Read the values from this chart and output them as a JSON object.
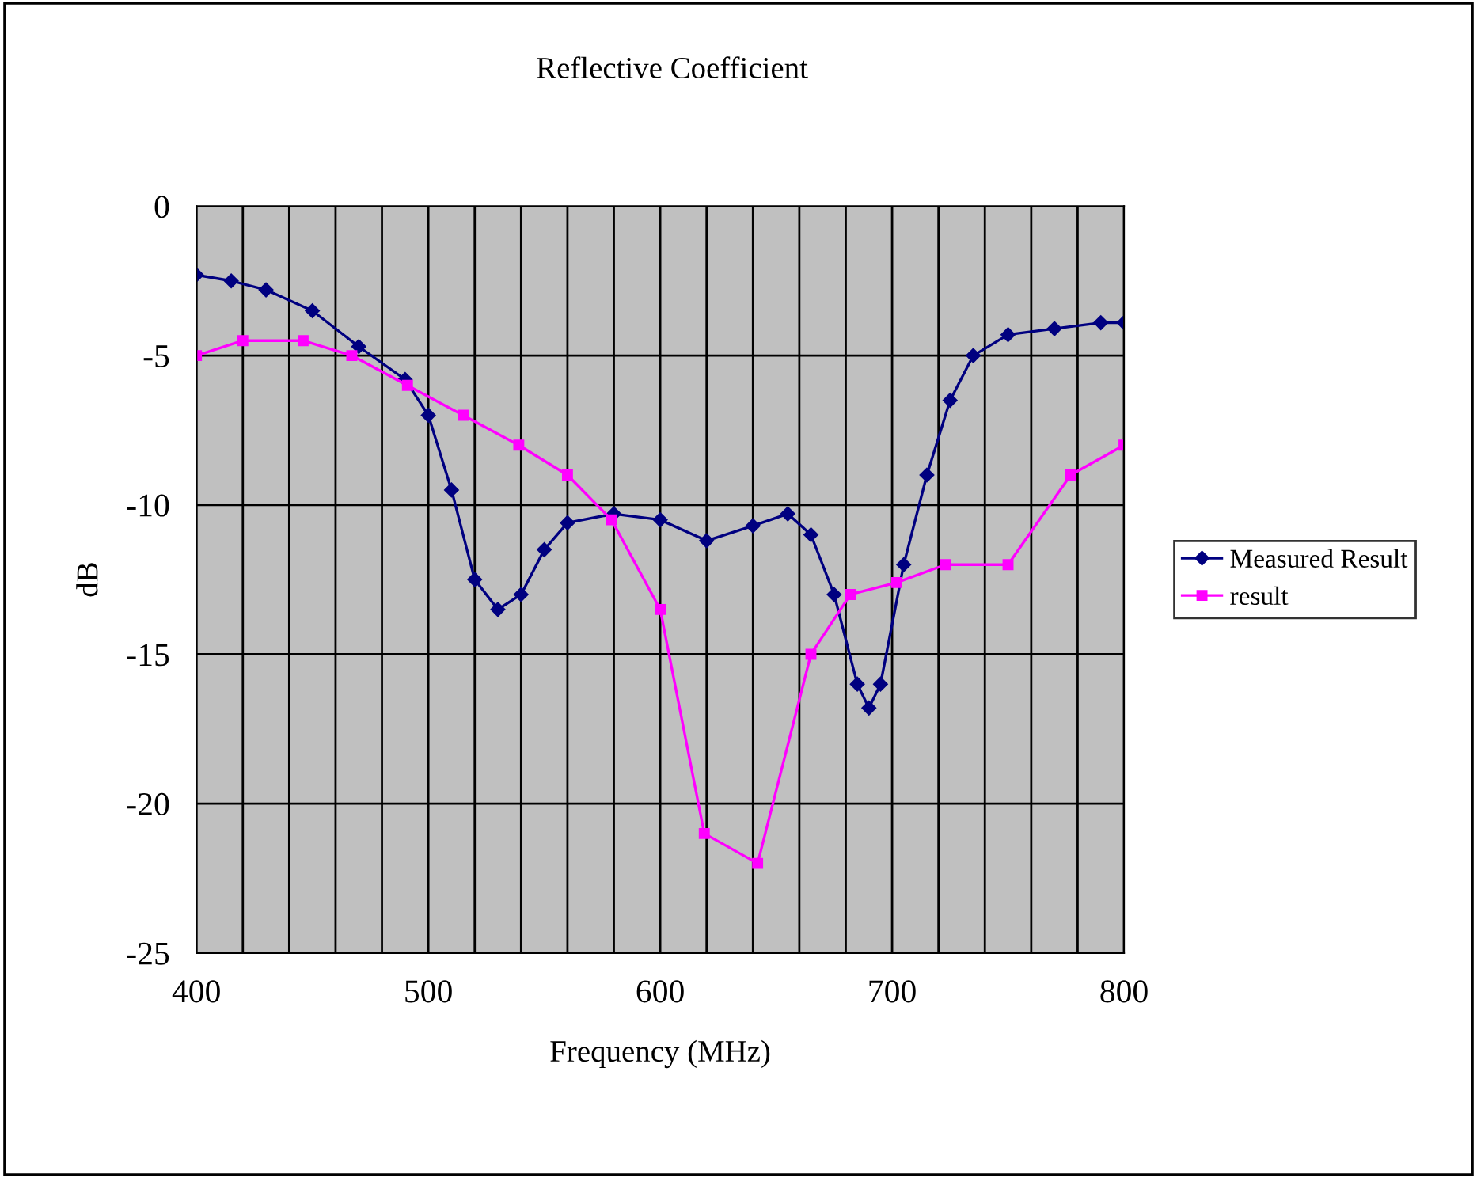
{
  "chart_data": {
    "type": "line",
    "title": "Reflective Coefficient",
    "xlabel": "Frequency (MHz)",
    "ylabel": "dB",
    "xlim": [
      400,
      800
    ],
    "ylim": [
      -25,
      0
    ],
    "xticks": [
      400,
      {
        "value": 420,
        "label": null
      },
      {
        "value": 440,
        "label": null
      },
      {
        "value": 460,
        "label": null
      },
      {
        "value": 480,
        "label": null
      },
      500,
      {
        "value": 520,
        "label": null
      },
      {
        "value": 540,
        "label": null
      },
      {
        "value": 560,
        "label": null
      },
      {
        "value": 580,
        "label": null
      },
      600,
      {
        "value": 620,
        "label": null
      },
      {
        "value": 640,
        "label": null
      },
      {
        "value": 660,
        "label": null
      },
      {
        "value": 680,
        "label": null
      },
      700,
      {
        "value": 720,
        "label": null
      },
      {
        "value": 740,
        "label": null
      },
      {
        "value": 760,
        "label": null
      },
      {
        "value": 780,
        "label": null
      },
      800
    ],
    "yticks": [
      0,
      -5,
      -10,
      -15,
      -20,
      -25
    ],
    "grid": true,
    "legend": "right",
    "series": [
      {
        "name": "Measured Result",
        "color": "#000080",
        "marker": "diamond",
        "x": [
          400,
          415,
          430,
          450,
          470,
          490,
          500,
          510,
          520,
          530,
          540,
          550,
          560,
          580,
          600,
          620,
          640,
          655,
          665,
          675,
          685,
          690,
          695,
          705,
          715,
          725,
          735,
          750,
          770,
          790,
          800
        ],
        "values": [
          -2.3,
          -2.5,
          -2.8,
          -3.5,
          -4.7,
          -5.8,
          -7,
          -9.5,
          -12.5,
          -13.5,
          -13,
          -11.5,
          -10.6,
          -10.3,
          -10.5,
          -11.2,
          -10.7,
          -10.3,
          -11,
          -13,
          -16,
          -16.8,
          -16,
          -12,
          -9,
          -6.5,
          -5,
          -4.3,
          -4.1,
          -3.9,
          -3.9
        ]
      },
      {
        "name": "result",
        "color": "#ff00ff",
        "marker": "square",
        "x": [
          400,
          420,
          446,
          467,
          491,
          515,
          539,
          560,
          579,
          600,
          619,
          642,
          665,
          682,
          702,
          723,
          750,
          777,
          800
        ],
        "values": [
          -5,
          -4.5,
          -4.5,
          -5,
          -6,
          -7,
          -8,
          -9,
          -10.5,
          -13.5,
          -21,
          -22,
          -15,
          -13,
          -12.6,
          -12,
          -12,
          -9,
          -8
        ]
      }
    ]
  }
}
